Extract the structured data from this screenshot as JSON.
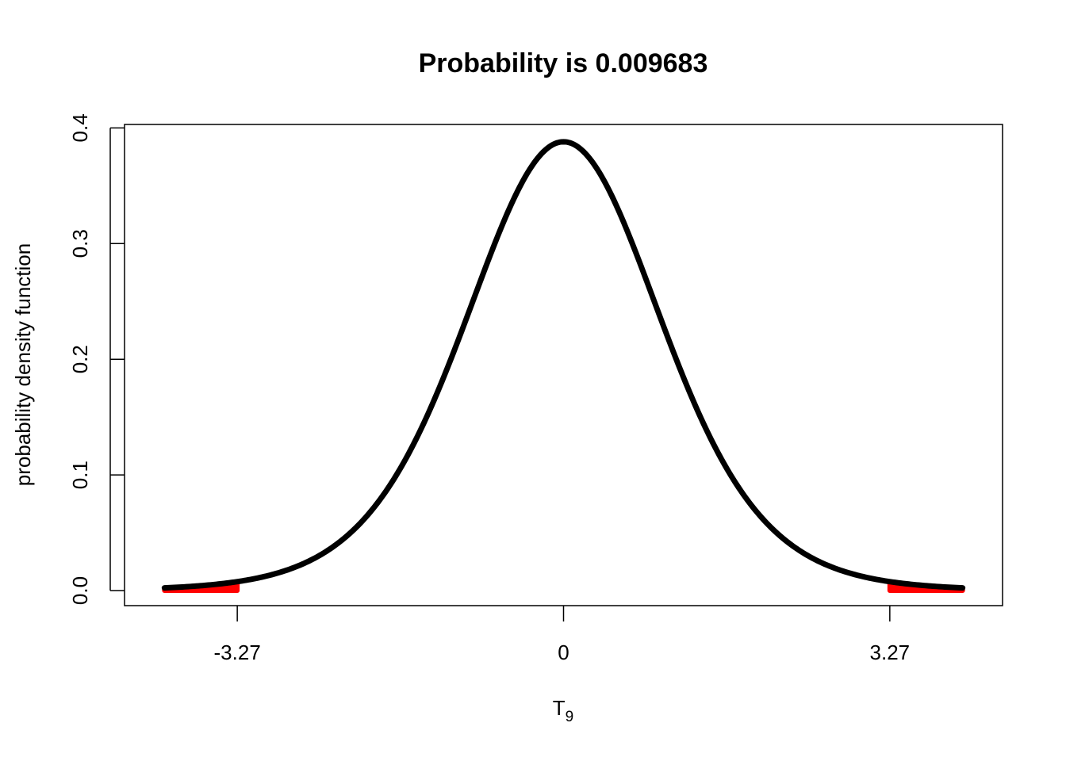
{
  "chart_data": {
    "type": "area",
    "title": "Probability is 0.009683",
    "xlabel": "T",
    "xlabel_subscript": "9",
    "ylabel": "probability  density  function",
    "distribution": "Student t",
    "df": 9,
    "critical_value": 3.27,
    "tail_probability": 0.009683,
    "xlim": [
      -4.4,
      4.4
    ],
    "ylim": [
      -0.013,
      0.403
    ],
    "curve_range": [
      -4.0,
      4.0
    ],
    "x_ticks": [
      -3.27,
      0,
      3.27
    ],
    "x_tick_labels": [
      "-3.27",
      "0",
      "3.27"
    ],
    "y_ticks": [
      0.0,
      0.1,
      0.2,
      0.3,
      0.4
    ],
    "y_tick_labels": [
      "0.0",
      "0.1",
      "0.2",
      "0.3",
      "0.4"
    ],
    "shaded_regions": [
      {
        "name": "left-tail",
        "from": -4.0,
        "to": -3.27
      },
      {
        "name": "right-tail",
        "from": 3.27,
        "to": 4.0
      }
    ],
    "curve_color": "#000000",
    "shade_color": "#ff0000",
    "grid": false,
    "legend": "none"
  }
}
